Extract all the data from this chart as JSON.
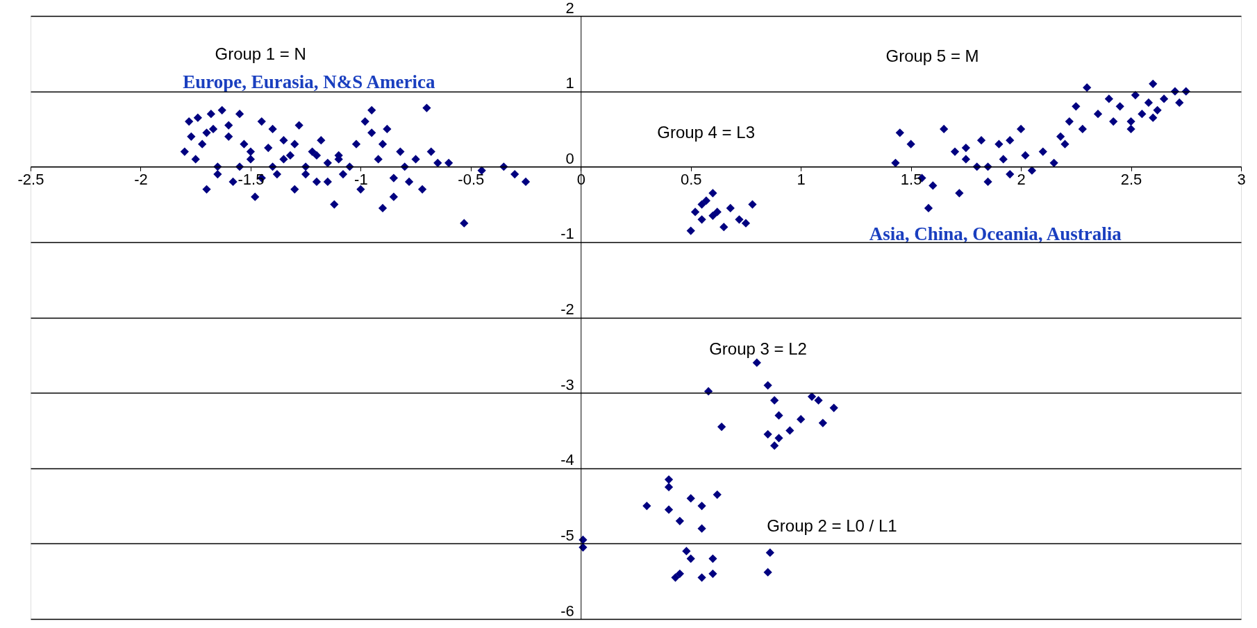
{
  "chart_data": {
    "type": "scatter",
    "marker": "diamond",
    "grid": "y",
    "xlim": [
      -2.5,
      3
    ],
    "xticks": [
      -2.5,
      -2,
      -1.5,
      -1,
      -0.5,
      0,
      0.5,
      1,
      1.5,
      2,
      2.5,
      3
    ],
    "ylim": [
      -6,
      2
    ],
    "yticks": [
      -6,
      -5,
      -4,
      -3,
      -2,
      -1,
      0,
      1,
      2
    ],
    "series": [
      {
        "color": "#000080",
        "x": [
          -1.8,
          -1.78,
          -1.77,
          -1.75,
          -1.74,
          -1.72,
          -1.7,
          -1.68,
          -1.67,
          -1.65,
          -1.63,
          -1.6,
          -1.58,
          -1.55,
          -1.53,
          -1.5,
          -1.48,
          -1.45,
          -1.42,
          -1.4,
          -1.38,
          -1.35,
          -1.32,
          -1.3,
          -1.28,
          -1.25,
          -1.22,
          -1.2,
          -1.18,
          -1.15,
          -1.12,
          -1.1,
          -1.08,
          -1.05,
          -1.02,
          -1.0,
          -0.98,
          -0.95,
          -0.92,
          -0.9,
          -0.88,
          -0.85,
          -0.82,
          -0.8,
          -0.78,
          -0.75,
          -0.72,
          -0.7,
          -0.68,
          -0.65,
          -0.6,
          -0.53,
          -0.45,
          -0.35,
          -0.3,
          -0.25,
          -1.7,
          -1.6,
          -1.5,
          -1.4,
          -1.3,
          -1.2,
          -1.1,
          -0.95,
          -0.9,
          -0.85,
          -1.65,
          -1.55,
          -1.45,
          -1.35,
          -1.25,
          -1.15,
          0.5,
          0.52,
          0.55,
          0.57,
          0.6,
          0.62,
          0.65,
          0.68,
          0.72,
          0.75,
          0.78,
          0.55,
          0.6,
          1.43,
          1.45,
          1.5,
          1.55,
          1.58,
          1.6,
          1.65,
          1.7,
          1.72,
          1.75,
          1.8,
          1.82,
          1.85,
          1.9,
          1.92,
          1.95,
          2.0,
          2.02,
          2.05,
          2.1,
          2.15,
          2.18,
          2.2,
          2.22,
          2.25,
          2.28,
          2.3,
          2.35,
          2.4,
          2.42,
          2.45,
          2.5,
          2.52,
          2.55,
          2.58,
          2.6,
          2.62,
          2.65,
          2.7,
          2.72,
          2.75,
          1.75,
          1.85,
          1.95,
          2.5,
          2.6,
          0.8,
          0.58,
          0.64,
          0.85,
          0.88,
          0.9,
          0.88,
          0.95,
          1.0,
          1.05,
          1.1,
          1.15,
          0.85,
          0.9,
          1.08,
          0.01,
          0.01,
          0.3,
          0.4,
          0.4,
          0.4,
          0.45,
          0.5,
          0.55,
          0.55,
          0.5,
          0.45,
          0.43,
          0.55,
          0.6,
          0.62,
          0.6,
          0.86,
          0.85,
          0.48
        ],
        "values": [
          0.2,
          0.6,
          0.4,
          0.1,
          0.65,
          0.3,
          -0.3,
          0.7,
          0.5,
          0.0,
          0.75,
          0.4,
          -0.2,
          0.7,
          0.3,
          0.1,
          -0.4,
          0.6,
          0.25,
          0.5,
          -0.1,
          0.35,
          0.15,
          -0.3,
          0.55,
          0.0,
          0.2,
          -0.2,
          0.35,
          0.05,
          -0.5,
          0.15,
          -0.1,
          0.0,
          0.3,
          -0.3,
          0.6,
          0.75,
          0.1,
          -0.55,
          0.5,
          -0.4,
          0.2,
          0.0,
          -0.2,
          0.1,
          -0.3,
          0.78,
          0.2,
          0.05,
          0.05,
          -0.75,
          -0.05,
          0.0,
          -0.1,
          -0.2,
          0.45,
          0.55,
          0.2,
          0.0,
          0.3,
          0.15,
          0.1,
          0.45,
          0.3,
          -0.15,
          -0.1,
          0.0,
          -0.15,
          0.1,
          -0.1,
          -0.2,
          -0.85,
          -0.6,
          -0.7,
          -0.45,
          -0.35,
          -0.6,
          -0.8,
          -0.55,
          -0.7,
          -0.75,
          -0.5,
          -0.5,
          -0.65,
          0.05,
          0.45,
          0.3,
          -0.15,
          -0.55,
          -0.25,
          0.5,
          0.2,
          -0.35,
          0.1,
          0.0,
          0.35,
          -0.2,
          0.3,
          0.1,
          -0.1,
          0.5,
          0.15,
          -0.05,
          0.2,
          0.05,
          0.4,
          0.3,
          0.6,
          0.8,
          0.5,
          1.05,
          0.7,
          0.9,
          0.6,
          0.8,
          0.5,
          0.95,
          0.7,
          0.85,
          1.1,
          0.75,
          0.9,
          1.0,
          0.85,
          1.0,
          0.25,
          0.0,
          0.35,
          0.6,
          0.65,
          -2.6,
          -2.98,
          -3.45,
          -2.9,
          -3.1,
          -3.3,
          -3.7,
          -3.5,
          -3.35,
          -3.05,
          -3.4,
          -3.2,
          -3.55,
          -3.6,
          -3.1,
          -4.95,
          -5.05,
          -4.5,
          -4.15,
          -4.25,
          -4.55,
          -4.7,
          -4.4,
          -4.5,
          -4.8,
          -5.2,
          -5.4,
          -5.45,
          -5.45,
          -5.4,
          -4.35,
          -5.2,
          -5.12,
          -5.38,
          -5.1
        ]
      }
    ],
    "annotations": [
      "Group 1 = N",
      "Europe, Eurasia, N&S America",
      "Group 5 = M",
      "Group 4 = L3",
      "Asia, China, Oceania, Australia",
      "Group 3 = L2",
      "Group 2 = L0 / L1"
    ]
  }
}
